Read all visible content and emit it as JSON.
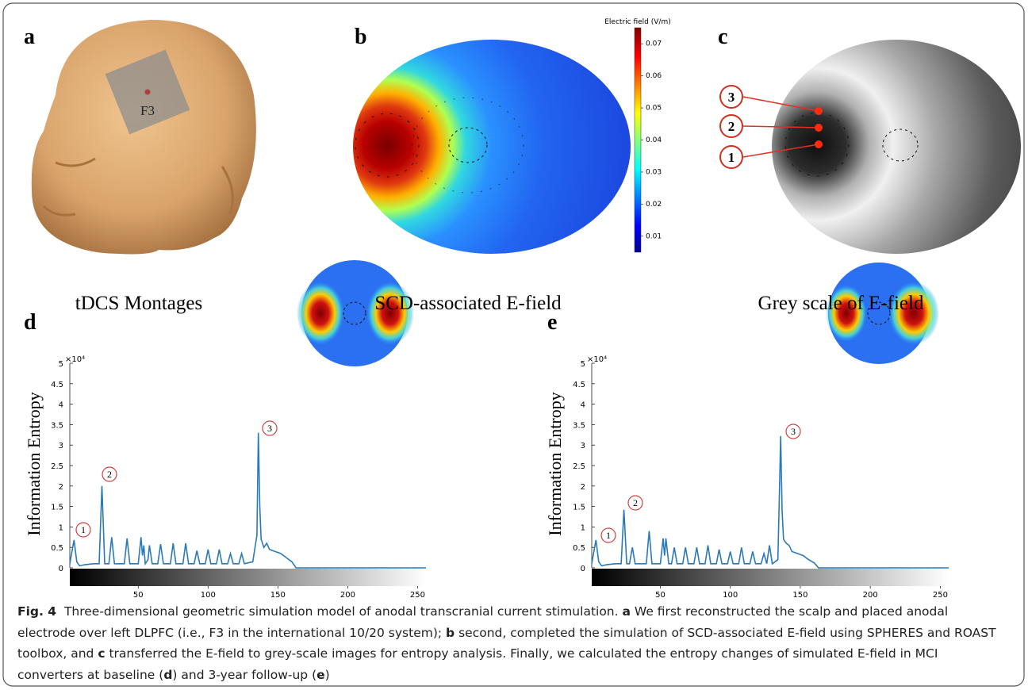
{
  "panels": [
    {
      "label": "a",
      "caption": "tDCS Montages",
      "electrode": "F3"
    },
    {
      "label": "b",
      "caption": "SCD-associated E-field"
    },
    {
      "label": "c",
      "caption": "Grey scale of E-field",
      "markers": [
        "3",
        "2",
        "1"
      ]
    }
  ],
  "colorbar": {
    "title": "Electric field (V/m)",
    "lim": [
      0.005,
      0.075
    ],
    "ticks": [
      0.01,
      0.02,
      0.03,
      0.04,
      0.05,
      0.06,
      0.07
    ]
  },
  "chart_data": [
    {
      "type": "line",
      "label": "d",
      "ylabel": "Information Entropy",
      "y_multiplier": "×10⁴",
      "color": "#2a7ab9",
      "annotations": [
        "1",
        "2",
        "3"
      ],
      "x": [
        1,
        2,
        4,
        6,
        8,
        12,
        18,
        22,
        24,
        26,
        29,
        31,
        33,
        40,
        42,
        44,
        50,
        52,
        53,
        54,
        55,
        57,
        58,
        60,
        64,
        66,
        68,
        73,
        75,
        77,
        82,
        84,
        86,
        90,
        92,
        94,
        98,
        100,
        102,
        106,
        108,
        110,
        114,
        116,
        118,
        122,
        124,
        126,
        132,
        135,
        136,
        137,
        138,
        140,
        142,
        144,
        148,
        152,
        156,
        160,
        163,
        170,
        200,
        256
      ],
      "values": [
        0.1,
        0.3,
        0.68,
        0.15,
        0.05,
        0.08,
        0.1,
        0.1,
        2.0,
        0.1,
        0.1,
        0.75,
        0.1,
        0.1,
        0.72,
        0.1,
        0.1,
        0.75,
        0.3,
        0.55,
        0.1,
        0.2,
        0.55,
        0.1,
        0.1,
        0.58,
        0.1,
        0.1,
        0.6,
        0.1,
        0.1,
        0.6,
        0.1,
        0.1,
        0.42,
        0.1,
        0.1,
        0.45,
        0.1,
        0.1,
        0.45,
        0.1,
        0.1,
        0.35,
        0.1,
        0.1,
        0.35,
        0.1,
        0.15,
        0.8,
        3.3,
        1.5,
        0.7,
        0.5,
        0.6,
        0.45,
        0.4,
        0.35,
        0.25,
        0.15,
        0,
        0,
        0,
        0
      ],
      "xlim": [
        1,
        256
      ],
      "xticks": [
        50,
        100,
        150,
        200,
        250
      ],
      "ylim": [
        0,
        5
      ],
      "yticks": [
        0,
        0.5,
        1,
        1.5,
        2,
        2.5,
        3,
        3.5,
        4,
        4.5,
        5
      ]
    },
    {
      "type": "line",
      "label": "e",
      "ylabel": "Information Entropy",
      "y_multiplier": "×10⁴",
      "color": "#2a7ab9",
      "annotations": [
        "1",
        "2",
        "3"
      ],
      "x": [
        1,
        2,
        4,
        6,
        8,
        12,
        18,
        22,
        24,
        26,
        28,
        30,
        32,
        40,
        42,
        44,
        50,
        52,
        53,
        54,
        56,
        58,
        60,
        62,
        66,
        68,
        70,
        74,
        76,
        78,
        82,
        84,
        86,
        90,
        92,
        94,
        98,
        100,
        102,
        106,
        108,
        110,
        114,
        116,
        118,
        122,
        124,
        126,
        128,
        130,
        134,
        136,
        137,
        138,
        140,
        142,
        144,
        148,
        152,
        156,
        160,
        163,
        170,
        200,
        256
      ],
      "values": [
        0.1,
        0.3,
        0.68,
        0.15,
        0.05,
        0.08,
        0.1,
        0.1,
        1.42,
        0.1,
        0.1,
        0.5,
        0.1,
        0.1,
        0.9,
        0.1,
        0.1,
        0.72,
        0.3,
        0.72,
        0.1,
        0.1,
        0.5,
        0.1,
        0.1,
        0.5,
        0.1,
        0.1,
        0.5,
        0.1,
        0.1,
        0.55,
        0.1,
        0.1,
        0.45,
        0.1,
        0.1,
        0.4,
        0.1,
        0.1,
        0.5,
        0.1,
        0.1,
        0.4,
        0.1,
        0.1,
        0.35,
        0.1,
        0.55,
        0.1,
        0.2,
        3.22,
        1.4,
        0.7,
        0.6,
        0.55,
        0.4,
        0.35,
        0.3,
        0.2,
        0.12,
        0,
        0,
        0,
        0
      ],
      "xlim": [
        1,
        256
      ],
      "xticks": [
        50,
        100,
        150,
        200,
        250
      ],
      "ylim": [
        0,
        5
      ],
      "yticks": [
        0,
        0.5,
        1,
        1.5,
        2,
        2.5,
        3,
        3.5,
        4,
        4.5,
        5
      ]
    }
  ],
  "caption": {
    "label": "Fig. 4",
    "parts": [
      {
        "text": "Three-dimensional geometric simulation model of anodal transcranial current stimulation. "
      },
      {
        "text": "a",
        "bold": true
      },
      {
        "text": " We first reconstructed the scalp and placed anodal electrode over left DLPFC (i.e., F3 in the international 10/20 system); "
      },
      {
        "text": "b",
        "bold": true
      },
      {
        "text": " second, completed the simulation of SCD-associated E-field using SPHERES and ROAST toolbox, and "
      },
      {
        "text": "c",
        "bold": true
      },
      {
        "text": " transferred the E-field to grey-scale images for entropy analysis. Finally, we calculated the entropy changes of simulated E-field in MCI converters at baseline ("
      },
      {
        "text": "d",
        "bold": true
      },
      {
        "text": ") and 3-year follow-up ("
      },
      {
        "text": "e",
        "bold": true
      },
      {
        "text": ")"
      }
    ]
  }
}
